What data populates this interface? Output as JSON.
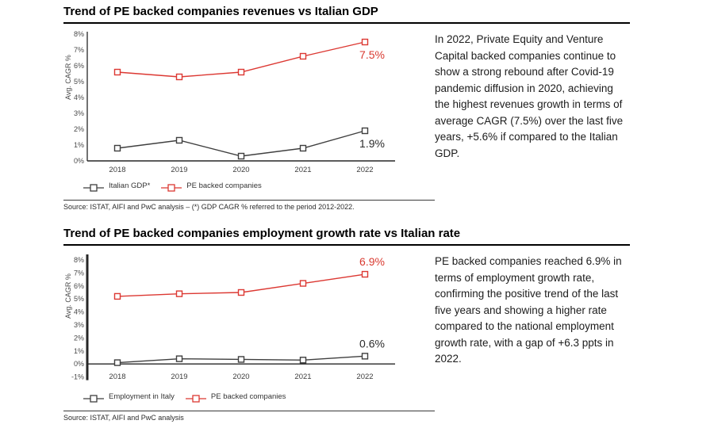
{
  "sections": [
    {
      "title": "Trend of PE backed companies revenues vs Italian GDP",
      "paragraph": "In 2022, Private Equity and Venture Capital backed companies continue to show a strong rebound after Covid-19 pandemic diffusion in 2020, achieving the highest revenues growth in terms of average CAGR (7.5%) over the last five years, +5.6% if compared to the Italian GDP.",
      "source": "Source: ISTAT, AIFI and PwC analysis – (*) GDP CAGR % referred to the period 2012-2022.",
      "chart_data": {
        "type": "line",
        "ylabel": "Avg. CAGR %",
        "categories": [
          "2018",
          "2019",
          "2020",
          "2021",
          "2022"
        ],
        "ylim": [
          0,
          8
        ],
        "ytick_step": 1,
        "ytick_suffix": "%",
        "grid": false,
        "legend_position": "bottom",
        "series": [
          {
            "name": "Italian GDP*",
            "values": [
              0.8,
              1.3,
              0.3,
              0.8,
              1.9
            ],
            "color": "#3f3f3f",
            "label_color": "#2b2b2b",
            "end_label": "1.9%",
            "end_label_position": "below"
          },
          {
            "name": "PE backed companies",
            "values": [
              5.6,
              5.3,
              5.6,
              6.6,
              7.5
            ],
            "color": "#dc3832",
            "label_color": "#d93a30",
            "end_label": "7.5%",
            "end_label_position": "below"
          }
        ]
      }
    },
    {
      "title": "Trend of PE backed companies employment growth rate vs Italian rate",
      "paragraph": "PE backed companies reached 6.9% in terms of employment growth rate, confirming the positive trend of the last five years and showing a higher rate compared to the national employment growth rate, with a gap of +6.3 ppts in 2022.",
      "source": "Source: ISTAT, AIFI and PwC analysis",
      "chart_data": {
        "type": "line",
        "ylabel": "Avg. CAGR %",
        "categories": [
          "2018",
          "2019",
          "2020",
          "2021",
          "2022"
        ],
        "ylim": [
          -1,
          8
        ],
        "ytick_step": 1,
        "ytick_suffix": "%",
        "grid": false,
        "legend_position": "bottom",
        "series": [
          {
            "name": "Employment in Italy",
            "values": [
              0.1,
              0.4,
              0.35,
              0.3,
              0.6
            ],
            "color": "#3f3f3f",
            "label_color": "#2b2b2b",
            "end_label": "0.6%",
            "end_label_position": "above"
          },
          {
            "name": "PE backed companies",
            "values": [
              5.2,
              5.4,
              5.5,
              6.2,
              6.9
            ],
            "color": "#dc3832",
            "label_color": "#d93a30",
            "end_label": "6.9%",
            "end_label_position": "above"
          }
        ]
      }
    }
  ]
}
